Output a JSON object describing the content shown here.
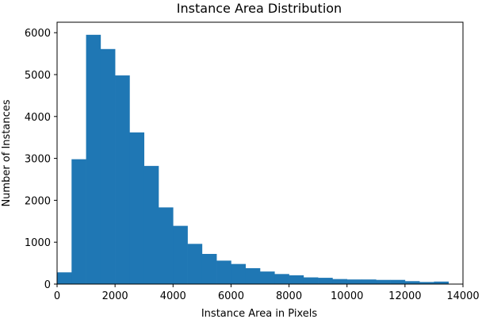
{
  "chart_data": {
    "type": "bar",
    "title": "Instance Area Distribution",
    "xlabel": "Instance Area in Pixels",
    "ylabel": "Number of Instances",
    "xlim": [
      0,
      14000
    ],
    "ylim": [
      0,
      6250
    ],
    "x_ticks": [
      0,
      2000,
      4000,
      6000,
      8000,
      10000,
      12000,
      14000
    ],
    "y_ticks": [
      0,
      1000,
      2000,
      3000,
      4000,
      5000,
      6000
    ],
    "x_tick_labels": [
      "0",
      "2000",
      "4000",
      "6000",
      "8000",
      "10000",
      "12000",
      "14000"
    ],
    "y_tick_labels": [
      "0",
      "1000",
      "2000",
      "3000",
      "4000",
      "5000",
      "6000"
    ],
    "grid": false,
    "legend": "none",
    "color": "#1f77b4",
    "bins": [
      {
        "x0": 0,
        "x1": 500,
        "value": 280
      },
      {
        "x0": 500,
        "x1": 1000,
        "value": 2980
      },
      {
        "x0": 1000,
        "x1": 1500,
        "value": 5950
      },
      {
        "x0": 1500,
        "x1": 2000,
        "value": 5610
      },
      {
        "x0": 2000,
        "x1": 2500,
        "value": 4980
      },
      {
        "x0": 2500,
        "x1": 3000,
        "value": 3620
      },
      {
        "x0": 3000,
        "x1": 3500,
        "value": 2820
      },
      {
        "x0": 3500,
        "x1": 4000,
        "value": 1830
      },
      {
        "x0": 4000,
        "x1": 4500,
        "value": 1390
      },
      {
        "x0": 4500,
        "x1": 5000,
        "value": 960
      },
      {
        "x0": 5000,
        "x1": 5500,
        "value": 720
      },
      {
        "x0": 5500,
        "x1": 6000,
        "value": 560
      },
      {
        "x0": 6000,
        "x1": 6500,
        "value": 480
      },
      {
        "x0": 6500,
        "x1": 7000,
        "value": 380
      },
      {
        "x0": 7000,
        "x1": 7500,
        "value": 300
      },
      {
        "x0": 7500,
        "x1": 8000,
        "value": 240
      },
      {
        "x0": 8000,
        "x1": 8500,
        "value": 210
      },
      {
        "x0": 8500,
        "x1": 9000,
        "value": 160
      },
      {
        "x0": 9000,
        "x1": 9500,
        "value": 150
      },
      {
        "x0": 9500,
        "x1": 10000,
        "value": 120
      },
      {
        "x0": 10000,
        "x1": 10500,
        "value": 110
      },
      {
        "x0": 10500,
        "x1": 11000,
        "value": 110
      },
      {
        "x0": 11000,
        "x1": 11500,
        "value": 100
      },
      {
        "x0": 11500,
        "x1": 12000,
        "value": 100
      },
      {
        "x0": 12000,
        "x1": 12500,
        "value": 70
      },
      {
        "x0": 12500,
        "x1": 13000,
        "value": 50
      },
      {
        "x0": 13000,
        "x1": 13500,
        "value": 60
      }
    ]
  }
}
